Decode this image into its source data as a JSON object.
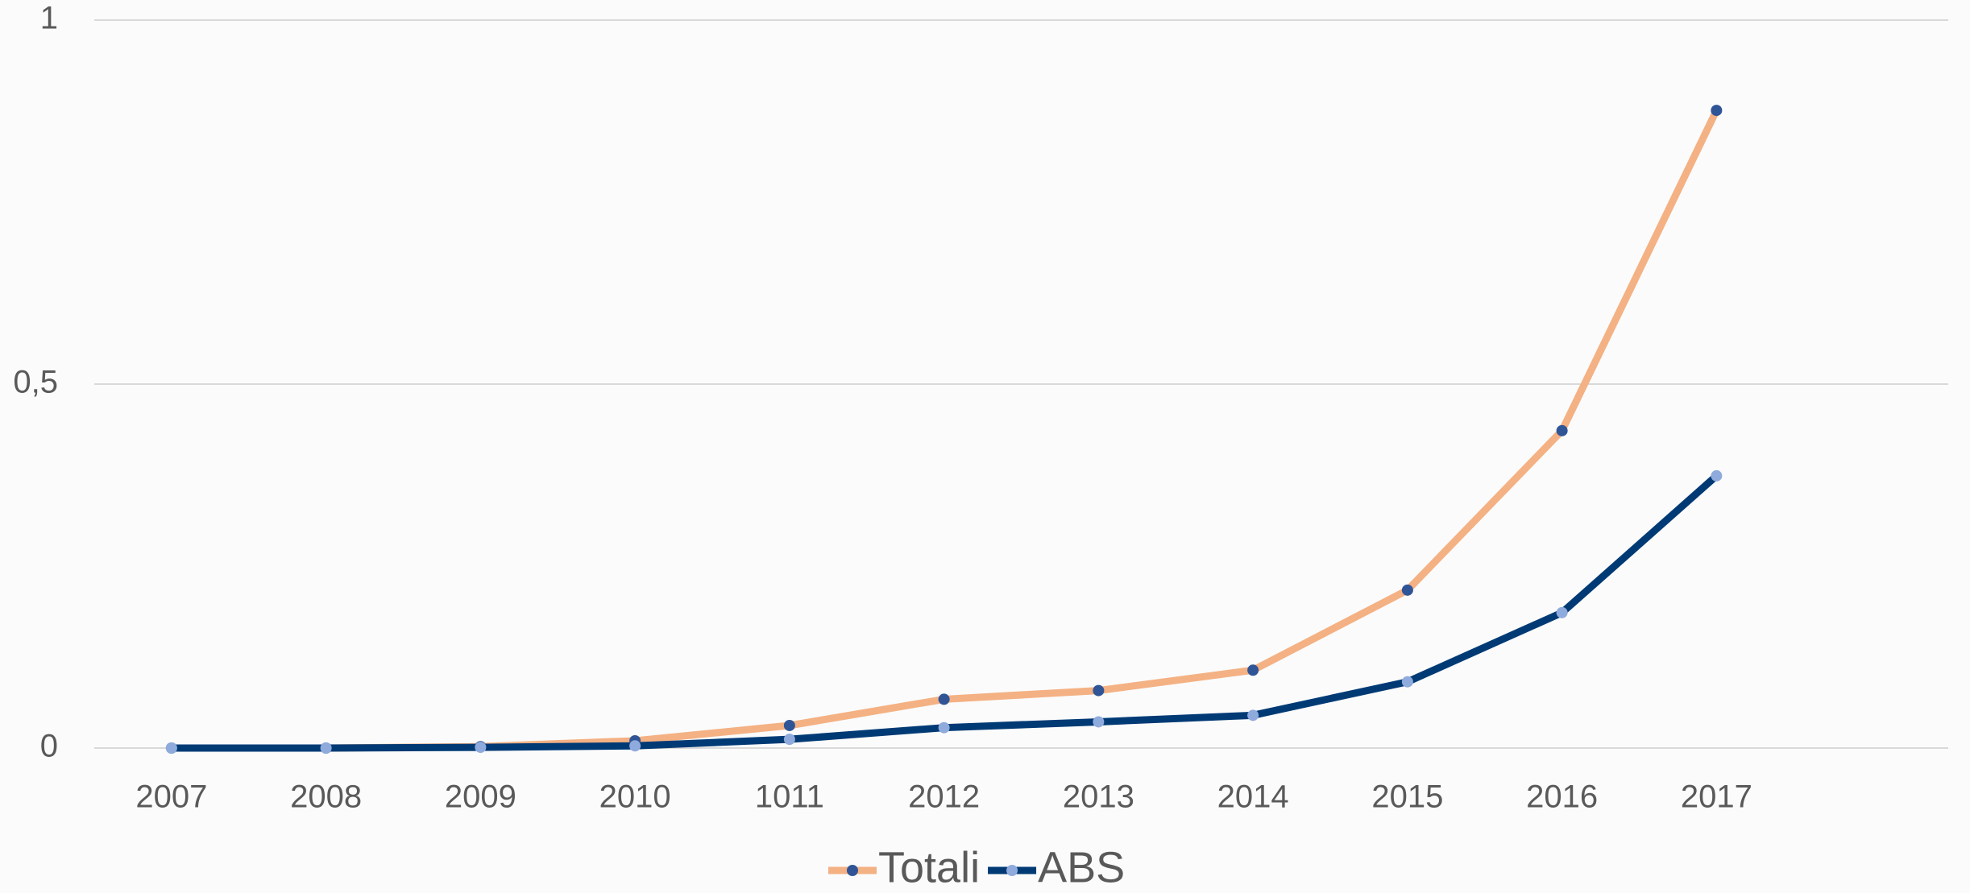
{
  "chart_data": {
    "type": "line",
    "categories": [
      "2007",
      "2008",
      "2009",
      "2010",
      "1011",
      "2012",
      "2013",
      "2014",
      "2015",
      "2016",
      "2017",
      null
    ],
    "series": [
      {
        "name": "Totali",
        "color": "#f4b183",
        "marker_color": "#2f5597",
        "values": [
          0,
          0,
          0.002,
          0.01,
          0.031,
          0.067,
          0.079,
          0.107,
          0.217,
          0.436,
          0.876,
          null
        ]
      },
      {
        "name": "ABS",
        "color": "#003a75",
        "marker_color": "#8faadc",
        "values": [
          0,
          0,
          0.001,
          0.003,
          0.012,
          0.028,
          0.036,
          0.045,
          0.091,
          0.186,
          0.374,
          null
        ]
      }
    ],
    "ylim": [
      0,
      1
    ],
    "yticks": [
      0,
      {
        "value": 0.5,
        "label": "0,5"
      },
      1
    ],
    "grid": true,
    "legend": "bottom"
  }
}
